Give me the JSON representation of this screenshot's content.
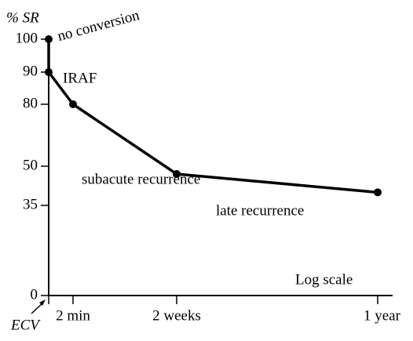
{
  "chart_data": {
    "type": "line",
    "y_label": "% SR",
    "x_scale_label": "Log scale",
    "x_log": true,
    "categories": [
      "ECV",
      "2 min",
      "2 weeks",
      "1 year"
    ],
    "x": [
      "ECV",
      "ECV",
      "2 min",
      "2 weeks",
      "1 year"
    ],
    "values": [
      100,
      90,
      80,
      47,
      40
    ],
    "color": "#000000",
    "ylim": [
      0,
      100
    ],
    "yticks": [
      0,
      35,
      50,
      80,
      90,
      100
    ],
    "annotations": [
      "no conversion",
      "IRAF",
      "subacute recurrence",
      "late recurrence"
    ]
  }
}
